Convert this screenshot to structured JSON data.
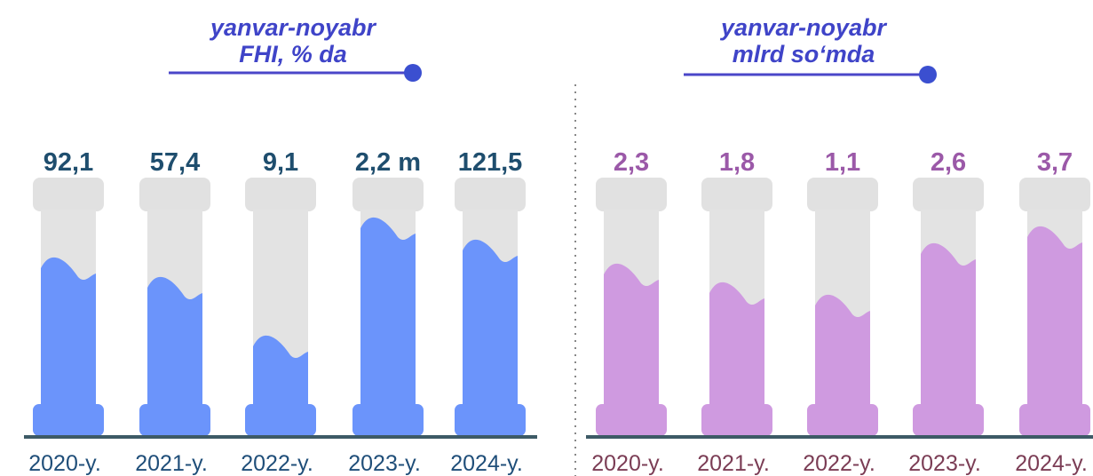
{
  "panels": [
    {
      "title": [
        "yanvar-noyabr",
        "FHI, % da"
      ],
      "items": [
        {
          "value": "92,1",
          "label": "2020-y."
        },
        {
          "value": "57,4",
          "label": "2021-y."
        },
        {
          "value": "9,1",
          "label": "2022-y."
        },
        {
          "value": "2,2 m",
          "label": "2023-y."
        },
        {
          "value": "121,5",
          "label": "2024-y."
        }
      ]
    },
    {
      "title": [
        "yanvar-noyabr",
        "mlrd so‘mda"
      ],
      "items": [
        {
          "value": "2,3",
          "label": "2020-y."
        },
        {
          "value": "1,8",
          "label": "2021-y."
        },
        {
          "value": "1,1",
          "label": "2022-y."
        },
        {
          "value": "2,6",
          "label": "2023-y."
        },
        {
          "value": "3,7",
          "label": "2024-y."
        }
      ]
    }
  ]
}
